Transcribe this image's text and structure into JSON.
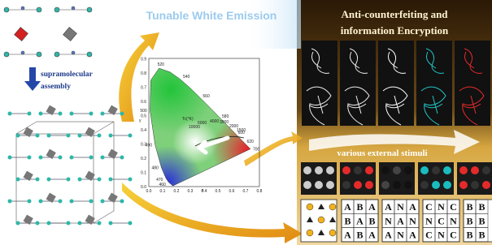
{
  "center_title": "Tunable White Emission",
  "right_title": [
    "Anti-counterfeiting  and",
    "information Encryption"
  ],
  "left_label": [
    "supramolecular",
    "assembly"
  ],
  "stimuli_label": "various external stimuli",
  "cie": {
    "x_ticks": [
      "0.0",
      "0.1",
      "0.2",
      "0.3",
      "0.4",
      "0.5",
      "0.6",
      "0.7",
      "0.8"
    ],
    "y_ticks": [
      "0.0",
      "0.1",
      "0.2",
      "0.3",
      "0.4",
      "0.5",
      "0.6",
      "0.7",
      "0.8",
      "0.9"
    ],
    "x_label": "x",
    "y_label": "y",
    "wavelengths": [
      "460",
      "470",
      "480",
      "490",
      "500",
      "520",
      "540",
      "560",
      "580",
      "600",
      "620",
      "700"
    ],
    "cct_title": "Tc(°K)",
    "cct_labels": [
      "10000",
      "6000",
      "4000",
      "3000",
      "2000",
      "1500"
    ]
  },
  "letter_grids": [
    [
      [
        "A",
        "B",
        "A"
      ],
      [
        "B",
        "A",
        "B"
      ],
      [
        "A",
        "B",
        "A"
      ]
    ],
    [
      [
        "A",
        "N",
        "A"
      ],
      [
        "N",
        "A",
        "N"
      ],
      [
        "A",
        "N",
        "A"
      ]
    ],
    [
      [
        "C",
        "N",
        "C"
      ],
      [
        "N",
        "C",
        "N"
      ],
      [
        "C",
        "N",
        "C"
      ]
    ],
    [
      [
        "B",
        "B"
      ],
      [
        "B",
        "B"
      ],
      [
        "B",
        "B"
      ]
    ]
  ]
}
